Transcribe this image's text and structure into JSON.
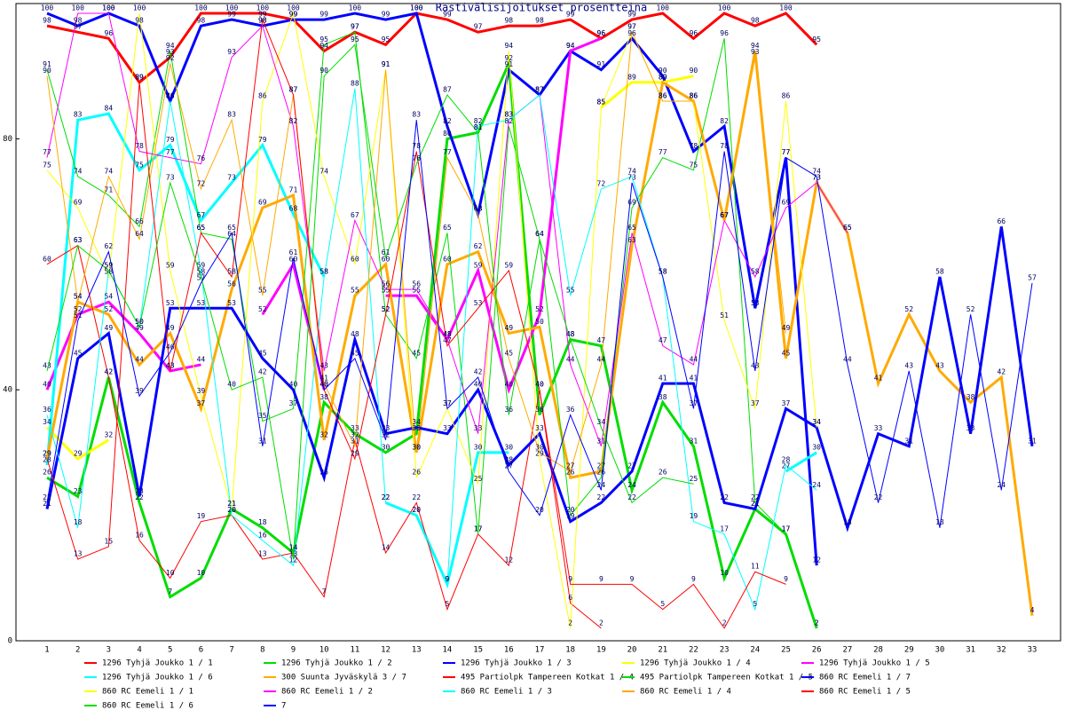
{
  "chart_data": {
    "type": "line",
    "title": "Rastivälisijoitukset prosentteina",
    "categories": [
      "1",
      "2",
      "3",
      "4",
      "5",
      "6",
      "7",
      "8",
      "9",
      "10",
      "11",
      "12",
      "13",
      "14",
      "15",
      "16",
      "17",
      "18",
      "19",
      "20",
      "21",
      "22",
      "23",
      "24",
      "25",
      "26",
      "27",
      "28",
      "29",
      "30",
      "31",
      "32",
      "33"
    ],
    "ylim": [
      0,
      100
    ],
    "yticks": [
      0,
      40,
      80
    ],
    "grid": false,
    "legend": "bottom",
    "series": [
      {
        "name": "1296 Tyhjä Joukko 1 / 1",
        "color": "#ff0000",
        "width": 3,
        "values": [
          98,
          97,
          96,
          89,
          93,
          100,
          100,
          100,
          99,
          94,
          97,
          95,
          100,
          99,
          97,
          98,
          98,
          99,
          96,
          99,
          100,
          96,
          100,
          98,
          100,
          95,
          null,
          null,
          null,
          null,
          null,
          null,
          null
        ]
      },
      {
        "name": "1296 Tyhjä Joukko 1 / 2",
        "color": "#00dd00",
        "width": 3,
        "values": [
          26,
          23,
          42,
          22,
          7,
          10,
          21,
          18,
          14,
          38,
          33,
          30,
          33,
          80,
          81,
          92,
          36,
          48,
          47,
          24,
          38,
          31,
          10,
          21,
          17,
          2,
          null,
          null,
          null,
          null,
          null,
          null,
          null
        ]
      },
      {
        "name": "1296 Tyhjä Joukko 1 / 3",
        "color": "#0000ff",
        "width": 3,
        "values": [
          100,
          98,
          100,
          98,
          86,
          98,
          99,
          98,
          99,
          99,
          100,
          99,
          100,
          82,
          68,
          91,
          87,
          94,
          91,
          96,
          90,
          78,
          82,
          53,
          77,
          12,
          null,
          null,
          null,
          null,
          null,
          null,
          null
        ]
      },
      {
        "name": "1296 Tyhjä Joukko 1 / 4",
        "color": "#ffff00",
        "width": 3,
        "values": [
          34,
          29,
          32,
          null,
          null,
          null,
          null,
          null,
          null,
          null,
          null,
          null,
          null,
          null,
          null,
          null,
          null,
          null,
          85,
          89,
          89,
          90,
          null,
          null,
          null,
          null,
          null,
          null,
          null,
          null,
          null,
          null,
          null
        ]
      },
      {
        "name": "1296 Tyhjä Joukko 1 / 5",
        "color": "#ff00ff",
        "width": 3,
        "values": [
          40,
          52,
          54,
          49,
          43,
          44,
          null,
          52,
          60,
          40,
          null,
          55,
          55,
          48,
          59,
          40,
          52,
          94,
          96,
          null,
          null,
          null,
          null,
          null,
          null,
          null,
          null,
          null,
          null,
          null,
          null,
          null,
          null
        ]
      },
      {
        "name": "1296 Tyhjä Joukko 1 / 6",
        "color": "#00ffff",
        "width": 3,
        "values": [
          28,
          83,
          84,
          75,
          79,
          67,
          73,
          79,
          68,
          58,
          null,
          22,
          20,
          9,
          30,
          30,
          null,
          null,
          null,
          null,
          null,
          null,
          null,
          null,
          27,
          30,
          null,
          null,
          null,
          null,
          null,
          null,
          null
        ]
      },
      {
        "name": "300 Suunta Jyväskylä 3 / 7",
        "color": "#ffaa00",
        "width": 3,
        "values": [
          29,
          54,
          52,
          44,
          49,
          37,
          56,
          69,
          71,
          32,
          55,
          60,
          30,
          60,
          62,
          49,
          50,
          26,
          27,
          63,
          89,
          86,
          67,
          94,
          45,
          73,
          65,
          41,
          52,
          43,
          38,
          42,
          4
        ]
      },
      {
        "name": "495 Partiolpk Tampereen Kotkat 1 / 4",
        "color": "#ff0000",
        "width": 1,
        "values": [
          60,
          63,
          42,
          16,
          10,
          19,
          20,
          13,
          14,
          7,
          32,
          14,
          22,
          5,
          17,
          12,
          40,
          6,
          2,
          null,
          null,
          null,
          null,
          null,
          null,
          null,
          null,
          null,
          null,
          null,
          null,
          null,
          null
        ]
      },
      {
        "name": "495 Partiolpk Tampereen Kotkat 1 / 5",
        "color": "#00dd00",
        "width": 1,
        "values": [
          91,
          74,
          71,
          66,
          94,
          65,
          64,
          35,
          37,
          95,
          97,
          52,
          45,
          65,
          17,
          82,
          64,
          20,
          26,
          69,
          77,
          75,
          96,
          22,
          17,
          2,
          null,
          null,
          null,
          null,
          null,
          null,
          null
        ]
      },
      {
        "name": "860 RC Eemeli 1 / 7",
        "color": "#0000ff",
        "width": 3,
        "values": [
          21,
          45,
          49,
          23,
          53,
          53,
          53,
          45,
          40,
          26,
          48,
          33,
          34,
          33,
          40,
          28,
          33,
          19,
          22,
          27,
          41,
          41,
          22,
          21,
          37,
          34,
          18,
          33,
          31,
          58,
          33,
          66,
          31
        ]
      },
      {
        "name": "860 RC Eemeli 1 / 1",
        "color": "#ffff00",
        "width": 1,
        "values": [
          75,
          69,
          58,
          100,
          59,
          39,
          21,
          86,
          100,
          74,
          60,
          91,
          26,
          37,
          25,
          94,
          29,
          2,
          85,
          97,
          86,
          86,
          51,
          37,
          86,
          34,
          null,
          null,
          null,
          null,
          null,
          null,
          null
        ]
      },
      {
        "name": "860 RC Eemeli 1 / 2",
        "color": "#ff00ff",
        "width": 1,
        "values": [
          77,
          100,
          100,
          78,
          77,
          76,
          93,
          98,
          82,
          43,
          67,
          56,
          56,
          48,
          33,
          83,
          87,
          44,
          31,
          65,
          47,
          44,
          67,
          58,
          69,
          73,
          65,
          null,
          null,
          null,
          null,
          null,
          null
        ]
      },
      {
        "name": "860 RC Eemeli 1 / 3",
        "color": "#00ffff",
        "width": 1,
        "values": [
          36,
          18,
          59,
          50,
          86,
          59,
          20,
          16,
          12,
          58,
          88,
          22,
          20,
          9,
          82,
          83,
          87,
          55,
          72,
          74,
          58,
          19,
          17,
          5,
          28,
          24,
          null,
          null,
          null,
          null,
          null,
          null,
          null
        ]
      },
      {
        "name": "860 RC Eemeli 1 / 4",
        "color": "#ffaa00",
        "width": 1,
        "values": [
          90,
          54,
          74,
          64,
          92,
          72,
          83,
          55,
          87,
          41,
          31,
          91,
          30,
          77,
          68,
          45,
          30,
          27,
          44,
          97,
          86,
          86,
          67,
          93,
          49,
          null,
          null,
          null,
          null,
          null,
          null,
          null,
          null
        ]
      },
      {
        "name": "860 RC Eemeli 1 / 5",
        "color": "#ff0000",
        "width": 1,
        "values": [
          29,
          13,
          15,
          89,
          43,
          65,
          58,
          99,
          87,
          40,
          29,
          52,
          78,
          47,
          53,
          59,
          40,
          9,
          9,
          9,
          5,
          9,
          2,
          11,
          9,
          null,
          null,
          null,
          null,
          null,
          null,
          null,
          null
        ]
      },
      {
        "name": "860 RC Eemeli 1 / 6",
        "color": "#00dd00",
        "width": 1,
        "values": [
          43,
          63,
          59,
          50,
          73,
          58,
          40,
          42,
          13,
          90,
          95,
          61,
          76,
          87,
          81,
          36,
          64,
          48,
          34,
          22,
          26,
          25,
          null,
          null,
          null,
          null,
          null,
          null,
          null,
          null,
          null,
          null,
          null
        ]
      },
      {
        "name": "7",
        "color": "#0000ff",
        "width": 1,
        "values": [
          22,
          51,
          62,
          39,
          46,
          57,
          65,
          31,
          61,
          40,
          45,
          32,
          83,
          37,
          42,
          27,
          20,
          36,
          24,
          73,
          58,
          37,
          78,
          43,
          77,
          74,
          44,
          22,
          43,
          18,
          52,
          24,
          57
        ]
      }
    ]
  }
}
